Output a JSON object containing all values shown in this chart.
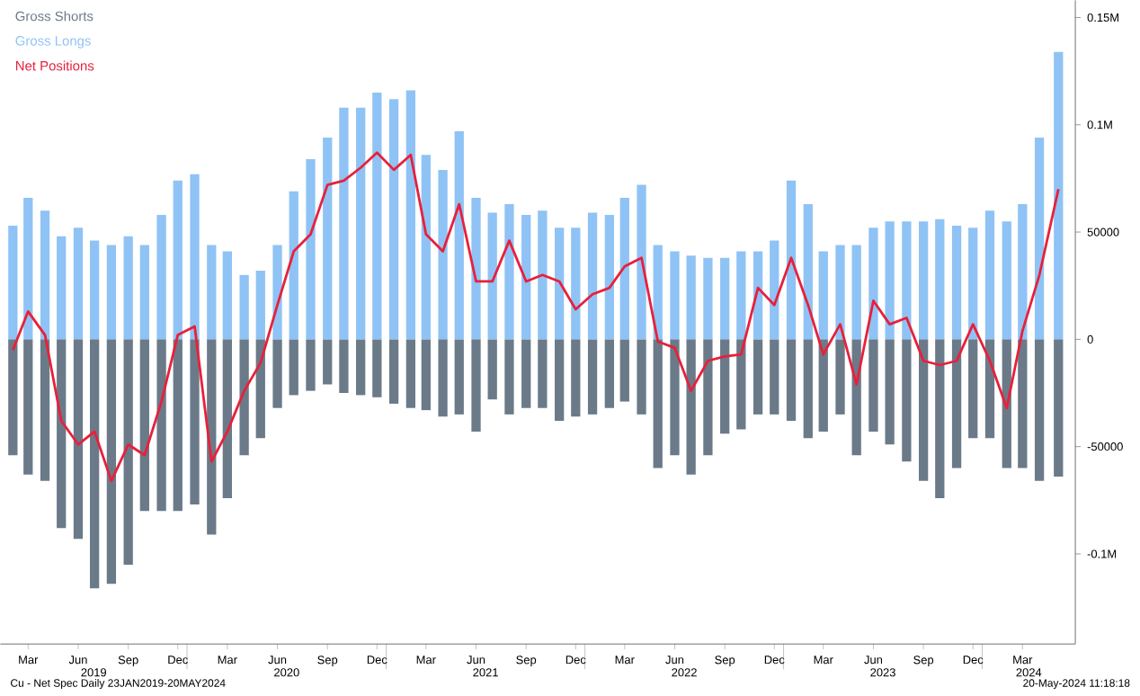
{
  "chart_data": {
    "type": "bar",
    "x": [
      "2019-02-15",
      "2019-03-15",
      "2019-04-15",
      "2019-05-15",
      "2019-06-15",
      "2019-07-15",
      "2019-08-15",
      "2019-09-15",
      "2019-10-15",
      "2019-11-15",
      "2019-12-15",
      "2020-01-15",
      "2020-02-15",
      "2020-03-15",
      "2020-04-15",
      "2020-05-15",
      "2020-06-15",
      "2020-07-15",
      "2020-08-15",
      "2020-09-15",
      "2020-10-15",
      "2020-11-15",
      "2020-12-15",
      "2021-01-15",
      "2021-02-15",
      "2021-03-15",
      "2021-04-15",
      "2021-05-15",
      "2021-06-15",
      "2021-07-15",
      "2021-08-15",
      "2021-09-15",
      "2021-10-15",
      "2021-11-15",
      "2021-12-15",
      "2022-01-15",
      "2022-02-15",
      "2022-03-15",
      "2022-04-15",
      "2022-05-15",
      "2022-06-15",
      "2022-07-15",
      "2022-08-15",
      "2022-09-15",
      "2022-10-15",
      "2022-11-15",
      "2022-12-15",
      "2023-01-15",
      "2023-02-15",
      "2023-03-15",
      "2023-04-15",
      "2023-05-15",
      "2023-06-15",
      "2023-07-15",
      "2023-08-15",
      "2023-09-15",
      "2023-10-15",
      "2023-11-15",
      "2023-12-15",
      "2024-01-15",
      "2024-02-15",
      "2024-03-15",
      "2024-04-15",
      "2024-05-20"
    ],
    "series": [
      {
        "name": "Gross Longs",
        "color": "#8fc3f5",
        "values": [
          53000,
          66000,
          60000,
          48000,
          52000,
          46000,
          44000,
          48000,
          44000,
          58000,
          74000,
          77000,
          44000,
          41000,
          30000,
          32000,
          44000,
          69000,
          84000,
          94000,
          108000,
          108000,
          115000,
          112000,
          116000,
          86000,
          79000,
          97000,
          66000,
          59000,
          63000,
          58000,
          60000,
          52000,
          52000,
          59000,
          58000,
          66000,
          72000,
          44000,
          41000,
          39000,
          38000,
          38000,
          41000,
          41000,
          46000,
          74000,
          63000,
          41000,
          44000,
          44000,
          52000,
          55000,
          55000,
          55000,
          56000,
          53000,
          52000,
          60000,
          55000,
          63000,
          94000,
          134000
        ]
      },
      {
        "name": "Gross Shorts",
        "color": "#6b7a89",
        "values": [
          -54000,
          -63000,
          -66000,
          -88000,
          -93000,
          -116000,
          -114000,
          -105000,
          -80000,
          -80000,
          -80000,
          -77000,
          -91000,
          -74000,
          -54000,
          -46000,
          -32000,
          -26000,
          -24000,
          -21000,
          -25000,
          -26000,
          -27000,
          -30000,
          -32000,
          -33000,
          -36000,
          -35000,
          -43000,
          -28000,
          -35000,
          -32000,
          -32000,
          -38000,
          -36000,
          -35000,
          -32000,
          -29000,
          -35000,
          -60000,
          -54000,
          -63000,
          -54000,
          -44000,
          -42000,
          -35000,
          -35000,
          -38000,
          -46000,
          -43000,
          -35000,
          -54000,
          -43000,
          -49000,
          -57000,
          -66000,
          -74000,
          -60000,
          -46000,
          -46000,
          -60000,
          -60000,
          -66000,
          -64000
        ]
      },
      {
        "name": "Net Positions",
        "type": "line",
        "color": "#e8203a",
        "values": [
          -5000,
          13000,
          2000,
          -38000,
          -49000,
          -43000,
          -66000,
          -49000,
          -54000,
          -29000,
          2000,
          6000,
          -57000,
          -43000,
          -24000,
          -11000,
          16000,
          41000,
          49000,
          72000,
          74000,
          80000,
          87000,
          79000,
          86000,
          49000,
          41000,
          63000,
          27000,
          27000,
          46000,
          27000,
          30000,
          27000,
          14000,
          21000,
          24000,
          34000,
          38000,
          -1000,
          -4000,
          -24000,
          -10000,
          -8000,
          -7000,
          24000,
          16000,
          38000,
          16000,
          -7000,
          7000,
          -21000,
          18000,
          7000,
          10000,
          -10000,
          -12000,
          -10000,
          7000,
          -10000,
          -32000,
          4000,
          30000,
          70000
        ]
      }
    ],
    "xlim": [
      "2019-01-23",
      "2024-06-20"
    ],
    "xticks": [
      {
        "value": "2019-03-15",
        "label": "Mar"
      },
      {
        "value": "2019-06-15",
        "label": "Jun"
      },
      {
        "value": "2019-09-15",
        "label": "Sep"
      },
      {
        "value": "2019-12-15",
        "label": "Dec"
      },
      {
        "value": "2020-01-01",
        "label": null
      },
      {
        "value": "2020-03-15",
        "label": "Mar"
      },
      {
        "value": "2020-06-15",
        "label": "Jun"
      },
      {
        "value": "2020-09-15",
        "label": "Sep"
      },
      {
        "value": "2020-12-15",
        "label": "Dec"
      },
      {
        "value": "2021-01-01",
        "label": null
      },
      {
        "value": "2021-03-15",
        "label": "Mar"
      },
      {
        "value": "2021-06-15",
        "label": "Jun"
      },
      {
        "value": "2021-09-15",
        "label": "Sep"
      },
      {
        "value": "2021-12-15",
        "label": "Dec"
      },
      {
        "value": "2022-01-01",
        "label": null
      },
      {
        "value": "2022-03-15",
        "label": "Mar"
      },
      {
        "value": "2022-06-15",
        "label": "Jun"
      },
      {
        "value": "2022-09-15",
        "label": "Sep"
      },
      {
        "value": "2022-12-15",
        "label": "Dec"
      },
      {
        "value": "2023-01-01",
        "label": null
      },
      {
        "value": "2023-03-15",
        "label": "Mar"
      },
      {
        "value": "2023-06-15",
        "label": "Jun"
      },
      {
        "value": "2023-09-15",
        "label": "Sep"
      },
      {
        "value": "2023-12-15",
        "label": "Dec"
      },
      {
        "value": "2024-01-01",
        "label": null
      },
      {
        "value": "2024-03-15",
        "label": "Mar"
      }
    ],
    "ylim": [
      -142000,
      158000
    ],
    "yticks": [
      {
        "value": 150000,
        "label": "0.15M"
      },
      {
        "value": 100000,
        "label": "0.1M"
      },
      50000,
      0,
      -50000,
      {
        "value": -100000,
        "label": "-0.1M"
      }
    ],
    "legend": "top left",
    "stacked": true,
    "annotations": [
      "2019",
      "2020",
      "2021",
      "2022",
      "2023",
      "2024",
      "Cu - Net Spec  Daily 23JAN2019-20MAY2024",
      "20-May-2024 11:18:18"
    ]
  }
}
